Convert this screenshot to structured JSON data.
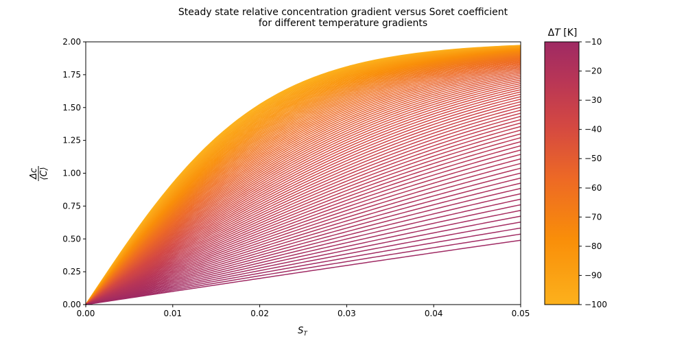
{
  "chart_data": {
    "type": "line",
    "title": "Steady state relative concentration gradient versus Soret coefficient",
    "subtitle": "for different temperature gradients",
    "xlabel_main": "S",
    "xlabel_sub": "T",
    "ylabel_num": "Δc",
    "ylabel_den": "⟨C⟩",
    "xlim": [
      0,
      0.05
    ],
    "ylim": [
      0,
      2
    ],
    "x_ticks": [
      "0.00",
      "0.01",
      "0.02",
      "0.03",
      "0.04",
      "0.05"
    ],
    "y_ticks": [
      "0.00",
      "0.25",
      "0.50",
      "0.75",
      "1.00",
      "1.25",
      "1.50",
      "1.75",
      "2.00"
    ],
    "grid": false,
    "model": "Δc/⟨C⟩ = 2·tanh(−S_T·ΔT/2)",
    "series_count": 91,
    "delta_T_range": [
      -100,
      -10
    ],
    "colorbar": {
      "label_main": "Δ",
      "label_var": "T",
      "label_unit": " [K]",
      "range": [
        -100,
        -10
      ],
      "ticks": [
        "−10",
        "−20",
        "−30",
        "−40",
        "−50",
        "−60",
        "−70",
        "−80",
        "−90",
        "−100"
      ],
      "colors": [
        "#fcb11c",
        "#f98e09",
        "#ed6925",
        "#d44842",
        "#b73557",
        "#9f2a63"
      ]
    }
  }
}
